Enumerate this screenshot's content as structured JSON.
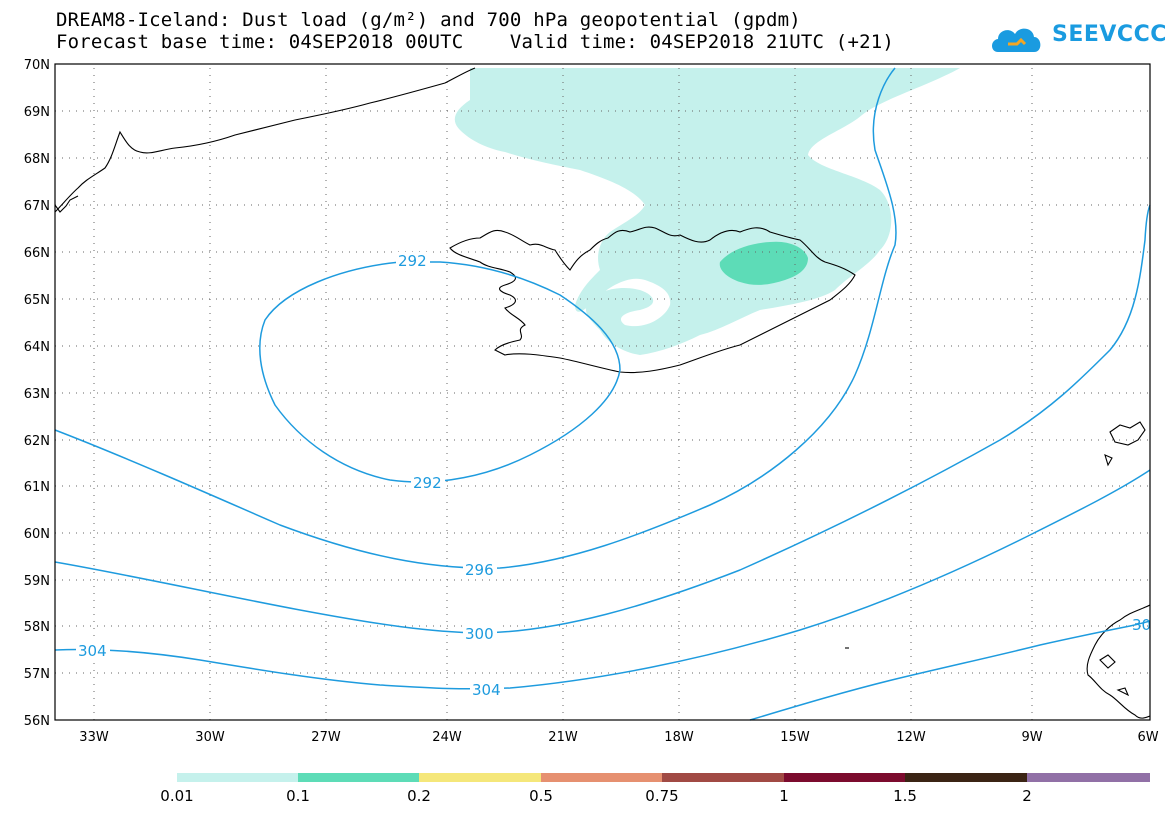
{
  "title_line1": "DREAM8-Iceland: Dust load (g/m²) and 700 hPa geopotential (gpdm)",
  "title_line2": "Forecast base time: 04SEP2018 00UTC    Valid time: 04SEP2018 21UTC (+21)",
  "logo_text": "SEEVCCC",
  "lat_labels": [
    "70N",
    "69N",
    "68N",
    "67N",
    "66N",
    "65N",
    "64N",
    "63N",
    "62N",
    "61N",
    "60N",
    "59N",
    "58N",
    "57N",
    "56N"
  ],
  "lon_labels": [
    "33W",
    "30W",
    "27W",
    "24W",
    "21W",
    "18W",
    "15W",
    "12W",
    "9W",
    "6W"
  ],
  "contour_labels": {
    "c292_top": "292",
    "c292_bottom": "292",
    "c296": "296",
    "c300": "300",
    "c304_left": "304",
    "c304_mid": "304",
    "c300_right": "30"
  },
  "colorbar": {
    "labels": [
      "0.01",
      "0.1",
      "0.2",
      "0.5",
      "0.75",
      "1",
      "1.5",
      "2"
    ],
    "colors": [
      "#c5f1ec",
      "#5ddcb7",
      "#f5e77a",
      "#e69070",
      "#a14a44",
      "#7c0b2e",
      "#3b2414",
      "#9170a6"
    ]
  }
}
